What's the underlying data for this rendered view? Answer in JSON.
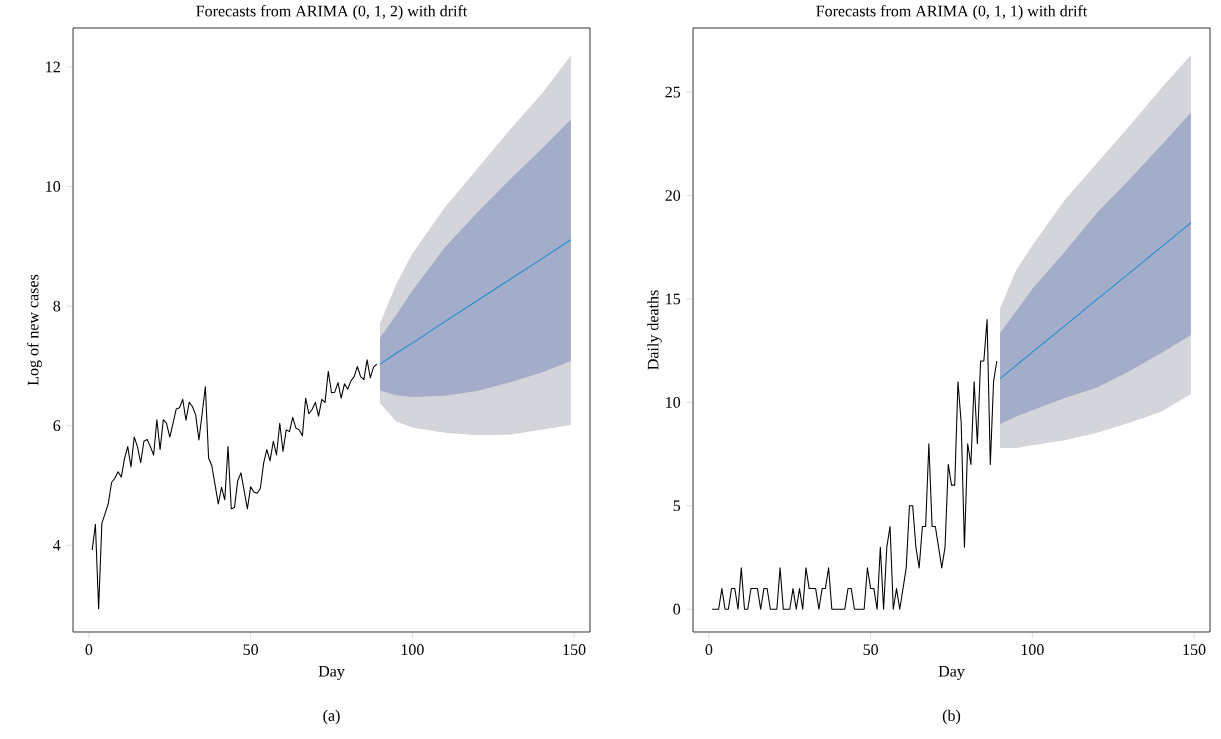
{
  "chart_data": [
    {
      "type": "line",
      "title": "Forecasts from ARIMA (0, 1, 2) with drift",
      "xlabel": "Day",
      "ylabel": "Log of new cases",
      "annotations": [
        "(a)"
      ],
      "xlim": [
        -4.92,
        154.92
      ],
      "ylim": [
        2.55,
        12.65
      ],
      "xticks": [
        0,
        50,
        100,
        150
      ],
      "yticks": [
        4,
        6,
        8,
        10,
        12
      ],
      "series": [
        {
          "color": "#000000",
          "x": [
            1,
            2,
            3,
            4,
            5,
            6,
            7,
            8,
            9,
            10,
            11,
            12,
            13,
            14,
            15,
            16,
            17,
            18,
            19,
            20,
            21,
            22,
            23,
            24,
            25,
            26,
            27,
            28,
            29,
            30,
            31,
            32,
            33,
            34,
            35,
            36,
            37,
            38,
            39,
            40,
            41,
            42,
            43,
            44,
            45,
            46,
            47,
            48,
            49,
            50,
            51,
            52,
            53,
            54,
            55,
            56,
            57,
            58,
            59,
            60,
            61,
            62,
            63,
            64,
            65,
            66,
            67,
            68,
            69,
            70,
            71,
            72,
            73,
            74,
            75,
            76,
            77,
            78,
            79,
            80,
            81,
            82,
            83,
            84,
            85,
            86,
            87,
            88,
            89
          ],
          "values": [
            3.92,
            4.35,
            2.94,
            4.37,
            4.53,
            4.7,
            5.05,
            5.12,
            5.23,
            5.14,
            5.45,
            5.65,
            5.31,
            5.81,
            5.65,
            5.38,
            5.74,
            5.77,
            5.65,
            5.51,
            6.1,
            5.6,
            6.1,
            6.04,
            5.81,
            6.04,
            6.28,
            6.3,
            6.44,
            6.09,
            6.39,
            6.32,
            6.18,
            5.76,
            6.2,
            6.65,
            5.46,
            5.33,
            5.01,
            4.69,
            4.97,
            4.76,
            5.65,
            4.61,
            4.63,
            5.08,
            5.21,
            4.91,
            4.61,
            4.98,
            4.89,
            4.87,
            4.95,
            5.37,
            5.6,
            5.41,
            5.74,
            5.51,
            6.04,
            5.57,
            5.93,
            5.9,
            6.14,
            5.96,
            5.93,
            5.83,
            6.46,
            6.2,
            6.27,
            6.39,
            6.16,
            6.44,
            6.39,
            6.91,
            6.55,
            6.56,
            6.72,
            6.46,
            6.7,
            6.61,
            6.75,
            6.82,
            6.99,
            6.82,
            6.77,
            7.1,
            6.8,
            6.98,
            7.03
          ]
        },
        {
          "color": "#d4d5da",
          "x": [
            90,
            95,
            100,
            110,
            120,
            130,
            140,
            149
          ],
          "values": [
            null,
            null,
            null,
            null,
            null,
            null,
            null,
            null
          ],
          "lower": [
            6.37,
            6.07,
            5.97,
            5.88,
            5.84,
            5.85,
            5.93,
            6.01
          ],
          "upper": [
            7.71,
            8.36,
            8.88,
            9.65,
            10.29,
            10.94,
            11.55,
            12.19
          ]
        },
        {
          "color": "#a3acc8",
          "x": [
            90,
            95,
            100,
            110,
            120,
            130,
            140,
            149
          ],
          "values": [
            null,
            null,
            null,
            null,
            null,
            null,
            null,
            null
          ],
          "lower": [
            6.59,
            6.51,
            6.48,
            6.5,
            6.58,
            6.72,
            6.89,
            7.08
          ],
          "upper": [
            7.47,
            7.85,
            8.26,
            8.98,
            9.56,
            10.11,
            10.63,
            11.12
          ]
        },
        {
          "color": "#1a8fd8",
          "x": [
            90,
            95,
            100,
            110,
            120,
            130,
            140,
            149
          ],
          "values": [
            7.03,
            7.21,
            7.38,
            7.74,
            8.09,
            8.44,
            8.79,
            9.11
          ]
        }
      ]
    },
    {
      "type": "line",
      "title": "Forecasts from ARIMA (0, 1, 1) with drift",
      "xlabel": "Day",
      "ylabel": "Daily deaths",
      "annotations": [
        "(b)"
      ],
      "xlim": [
        -4.92,
        154.92
      ],
      "ylim": [
        -1.1,
        28.1
      ],
      "xticks": [
        0,
        50,
        100,
        150
      ],
      "yticks": [
        0,
        5,
        10,
        15,
        20,
        25
      ],
      "series": [
        {
          "color": "#000000",
          "x": [
            1,
            2,
            3,
            4,
            5,
            6,
            7,
            8,
            9,
            10,
            11,
            12,
            13,
            14,
            15,
            16,
            17,
            18,
            19,
            20,
            21,
            22,
            23,
            24,
            25,
            26,
            27,
            28,
            29,
            30,
            31,
            32,
            33,
            34,
            35,
            36,
            37,
            38,
            39,
            40,
            41,
            42,
            43,
            44,
            45,
            46,
            47,
            48,
            49,
            50,
            51,
            52,
            53,
            54,
            55,
            56,
            57,
            58,
            59,
            60,
            61,
            62,
            63,
            64,
            65,
            66,
            67,
            68,
            69,
            70,
            71,
            72,
            73,
            74,
            75,
            76,
            77,
            78,
            79,
            80,
            81,
            82,
            83,
            84,
            85,
            86,
            87,
            88,
            89
          ],
          "values": [
            0,
            0,
            0,
            1,
            0,
            0,
            1,
            1,
            0,
            2,
            0,
            0,
            1,
            1,
            1,
            0,
            1,
            1,
            0,
            0,
            0,
            2,
            0,
            0,
            0,
            1,
            0,
            1,
            0,
            2,
            1,
            1,
            1,
            0,
            1,
            1,
            2,
            0,
            0,
            0,
            0,
            0,
            1,
            1,
            0,
            0,
            0,
            0,
            2,
            1,
            1,
            0,
            3,
            0,
            3,
            4,
            0,
            1,
            0,
            1,
            2,
            5,
            5,
            3,
            2,
            4,
            4,
            8,
            4,
            4,
            3,
            2,
            3,
            7,
            6,
            6,
            11,
            9,
            3,
            8,
            7,
            11,
            8,
            12,
            12,
            14,
            7,
            11,
            12
          ]
        },
        {
          "color": "#d4d5da",
          "x": [
            90,
            95,
            100,
            110,
            120,
            130,
            140,
            149
          ],
          "values": [
            null,
            null,
            null,
            null,
            null,
            null,
            null,
            null
          ],
          "lower": [
            7.8,
            7.8,
            7.93,
            8.17,
            8.53,
            9.02,
            9.56,
            10.41
          ],
          "upper": [
            14.54,
            16.39,
            17.59,
            19.78,
            21.57,
            23.36,
            25.21,
            26.8
          ]
        },
        {
          "color": "#a3acc8",
          "x": [
            90,
            95,
            100,
            110,
            120,
            130,
            140,
            149
          ],
          "values": [
            null,
            null,
            null,
            null,
            null,
            null,
            null,
            null
          ],
          "lower": [
            8.96,
            9.32,
            9.62,
            10.21,
            10.72,
            11.51,
            12.4,
            13.26
          ],
          "upper": [
            13.34,
            14.4,
            15.49,
            17.28,
            19.17,
            20.77,
            22.46,
            24.01
          ]
        },
        {
          "color": "#1a8fd8",
          "x": [
            90,
            95,
            100,
            110,
            120,
            130,
            140,
            149
          ],
          "values": [
            11.15,
            11.79,
            12.43,
            13.7,
            14.98,
            16.25,
            17.53,
            18.68
          ]
        }
      ]
    }
  ]
}
